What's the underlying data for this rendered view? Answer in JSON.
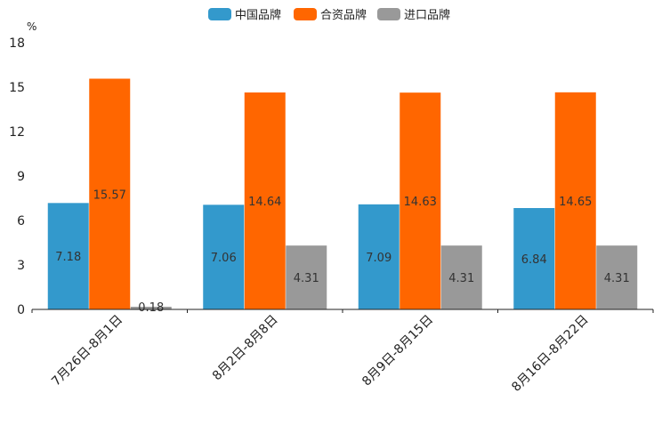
{
  "chart_data": {
    "type": "bar",
    "title": "",
    "xlabel": "",
    "ylabel": "%",
    "ylim": [
      0,
      18
    ],
    "yticks": [
      0,
      3,
      6,
      9,
      12,
      15,
      18
    ],
    "categories": [
      "7月26日-8月1日",
      "8月2日-8月8日",
      "8月9日-8月15日",
      "8月16日-8月22日"
    ],
    "series": [
      {
        "name": "中国品牌",
        "color": "#3399cc",
        "values": [
          7.18,
          7.06,
          7.09,
          6.84
        ]
      },
      {
        "name": "合资品牌",
        "color": "#ff6600",
        "values": [
          15.57,
          14.64,
          14.63,
          14.65
        ]
      },
      {
        "name": "进口品牌",
        "color": "#999999",
        "values": [
          0.18,
          4.31,
          4.31,
          4.31
        ]
      }
    ],
    "legend_position": "top-center",
    "grid": false
  }
}
